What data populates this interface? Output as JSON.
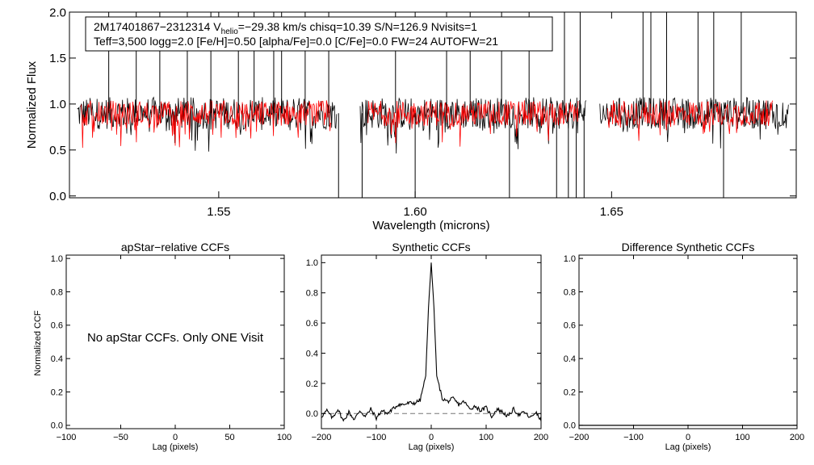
{
  "chart_data": [
    {
      "id": "spectrum",
      "type": "line",
      "annotation": {
        "line1_prefix": "2M17401867−2312314  V",
        "line1_sub": "helio",
        "line1_suffix": "=−29.38 km/s  chisq=10.39  S/N=126.9  Nvisits=1",
        "line2": "Teff=3,500 logg=2.0 [Fe/H]=0.50 [alpha/Fe]=0.0 [C/Fe]=0.0 FW=24 AUTOFW=21"
      },
      "xlabel": "Wavelength (microns)",
      "ylabel": "Normalized Flux",
      "xlim": [
        1.512,
        1.697
      ],
      "ylim": [
        -0.02,
        2.0
      ],
      "x_ticks": [
        "1.55",
        "1.60",
        "1.65"
      ],
      "x_tick_values": [
        1.55,
        1.6,
        1.65
      ],
      "y_ticks": [
        "0.0",
        "0.5",
        "1.0",
        "1.5",
        "2.0"
      ],
      "y_tick_values": [
        0.0,
        0.5,
        1.0,
        1.5,
        2.0
      ],
      "chips": [
        [
          1.514,
          1.58
        ],
        [
          1.586,
          1.6435
        ],
        [
          1.647,
          1.695
        ]
      ],
      "model_chips": [
        [
          1.515,
          1.5785
        ],
        [
          1.588,
          1.6415
        ],
        [
          1.649,
          1.691
        ]
      ],
      "series": [
        {
          "name": "observed",
          "color": "#000000",
          "baseline": 0.9
        },
        {
          "name": "model",
          "color": "#ff0000",
          "baseline": 0.9
        }
      ],
      "spike_up": [
        1.522,
        1.529,
        1.535,
        1.542,
        1.548,
        1.555,
        1.559,
        1.564,
        1.566,
        1.572,
        1.578,
        1.595,
        1.608,
        1.614,
        1.622,
        1.629,
        1.638,
        1.642,
        1.658,
        1.66,
        1.664,
        1.672,
        1.676,
        1.683
      ],
      "spike_down": [
        1.5805,
        1.5865,
        1.6,
        1.624,
        1.636,
        1.639,
        1.641,
        1.643,
        1.6785
      ]
    },
    {
      "id": "apstar",
      "type": "line",
      "title": "apStar−relative CCFs",
      "xlabel": "Lag (pixels)",
      "ylabel": "Normalized CCF",
      "xlim": [
        -100,
        100
      ],
      "ylim": [
        -0.02,
        1.02
      ],
      "x_ticks": [
        "−100",
        "−50",
        "0",
        "50",
        "100"
      ],
      "x_tick_values": [
        -100,
        -50,
        0,
        50,
        100
      ],
      "y_ticks": [
        "0.0",
        "0.2",
        "0.4",
        "0.6",
        "0.8",
        "1.0"
      ],
      "y_tick_values": [
        0.0,
        0.2,
        0.4,
        0.6,
        0.8,
        1.0
      ],
      "message": "No apStar CCFs.  Only ONE Visit"
    },
    {
      "id": "synthetic",
      "type": "line",
      "title": "Synthetic CCFs",
      "xlabel": "Lag (pixels)",
      "xlim": [
        -200,
        200
      ],
      "ylim": [
        -0.1,
        1.05
      ],
      "x_ticks": [
        "−200",
        "−100",
        "0",
        "100",
        "200"
      ],
      "x_tick_values": [
        -200,
        -100,
        0,
        100,
        200
      ],
      "y_ticks": [
        "0.0",
        "0.2",
        "0.4",
        "0.6",
        "0.8",
        "1.0"
      ],
      "y_tick_values": [
        0.0,
        0.2,
        0.4,
        0.6,
        0.8,
        1.0
      ],
      "peak": {
        "lag": 0,
        "value": 1.0
      },
      "zero_line": 0.0,
      "series": [
        {
          "name": "ccf",
          "x": [
            -200,
            -190,
            -180,
            -170,
            -160,
            -150,
            -140,
            -130,
            -120,
            -110,
            -100,
            -90,
            -80,
            -70,
            -60,
            -50,
            -40,
            -30,
            -20,
            -10,
            -5,
            0,
            5,
            10,
            20,
            30,
            40,
            50,
            60,
            70,
            80,
            90,
            100,
            110,
            120,
            130,
            140,
            150,
            160,
            170,
            180,
            190,
            200
          ],
          "values": [
            -0.02,
            0.02,
            -0.03,
            0.03,
            -0.05,
            0.01,
            -0.04,
            0.02,
            -0.02,
            0.03,
            -0.03,
            0.02,
            0.0,
            0.03,
            0.06,
            0.06,
            0.07,
            0.07,
            0.09,
            0.25,
            0.7,
            1.0,
            0.7,
            0.25,
            0.1,
            0.08,
            0.1,
            0.06,
            0.08,
            0.03,
            0.05,
            0.02,
            0.04,
            -0.02,
            0.03,
            0.01,
            -0.02,
            0.03,
            -0.01,
            0.01,
            -0.03,
            0.01,
            -0.05
          ]
        }
      ]
    },
    {
      "id": "difference",
      "type": "line",
      "title": "Difference Synthetic CCFs",
      "xlabel": "Lag (pixels)",
      "xlim": [
        -200,
        200
      ],
      "ylim": [
        -0.02,
        1.02
      ],
      "x_ticks": [
        "−200",
        "−100",
        "0",
        "100",
        "200"
      ],
      "x_tick_values": [
        -200,
        -100,
        0,
        100,
        200
      ],
      "y_ticks": [
        "0.0",
        "0.2",
        "0.4",
        "0.6",
        "0.8",
        "1.0"
      ],
      "y_tick_values": [
        0.0,
        0.2,
        0.4,
        0.6,
        0.8,
        1.0
      ],
      "series": [
        {
          "name": "diff",
          "x": [
            -200,
            200
          ],
          "values": [
            0.0,
            0.0
          ]
        }
      ]
    }
  ]
}
